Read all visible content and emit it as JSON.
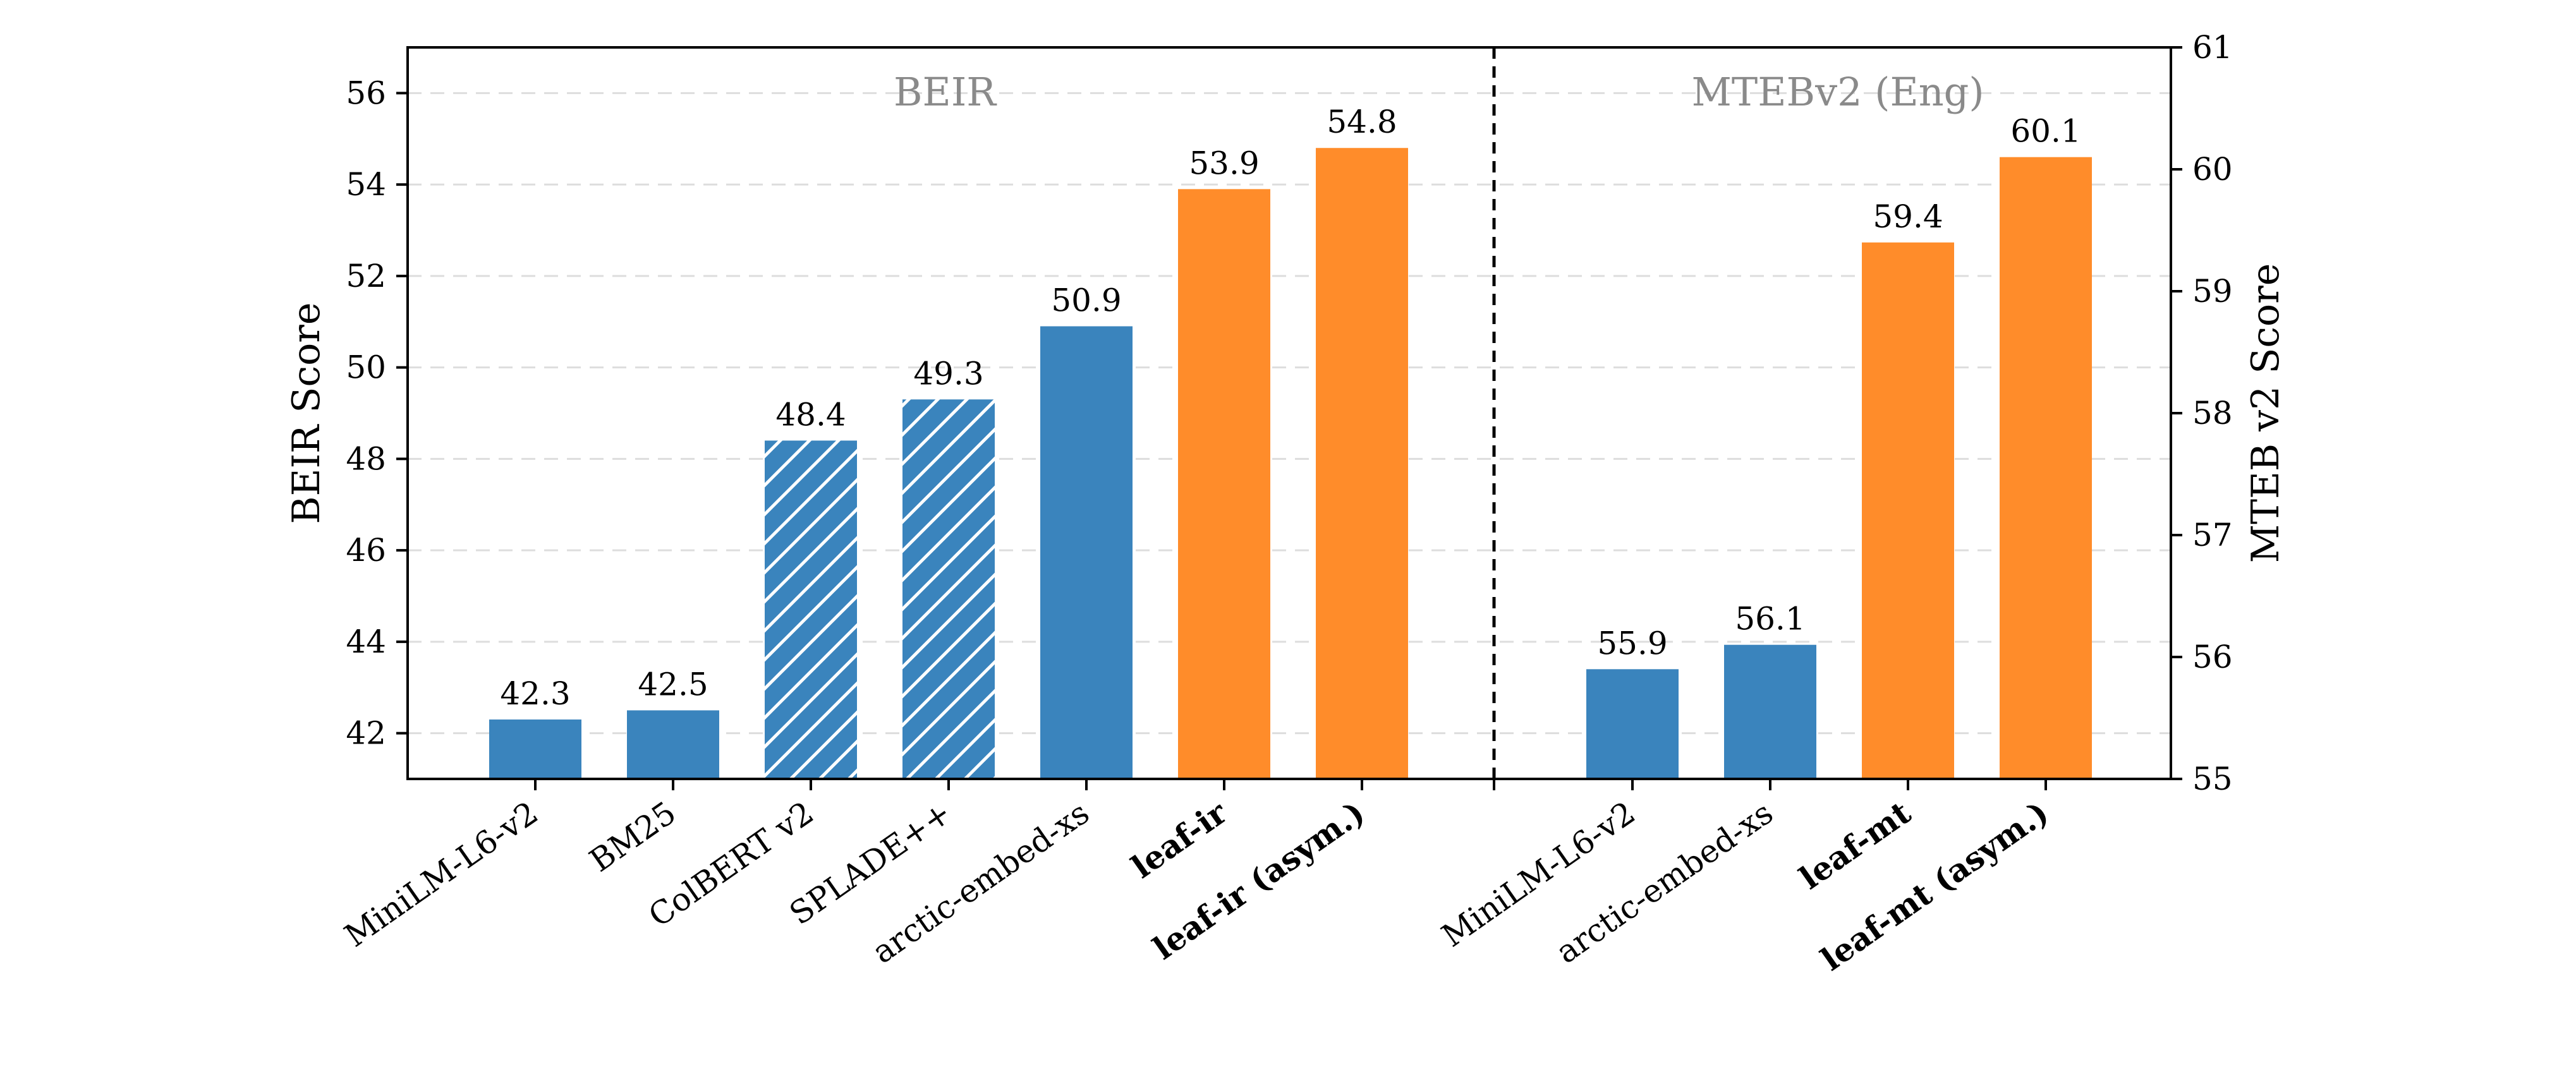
{
  "chart_data": {
    "type": "bar",
    "y_left": {
      "label": "BEIR Score",
      "ylim": [
        41,
        57
      ],
      "ticks": [
        42,
        44,
        46,
        48,
        50,
        52,
        54,
        56
      ]
    },
    "y_right": {
      "label": "MTEB v2 Score",
      "ylim": [
        55,
        61
      ],
      "ticks": [
        55,
        56,
        57,
        58,
        59,
        60,
        61
      ]
    },
    "grid": true,
    "panels": [
      {
        "title": "BEIR",
        "axis": "left",
        "categories": [
          "MiniLM-L6-v2",
          "BM25",
          "ColBERT v2",
          "SPLADE++",
          "arctic-embed-xs",
          "leaf-ir",
          "leaf-ir (asym.)"
        ],
        "values": [
          42.3,
          42.5,
          48.4,
          49.3,
          50.9,
          53.9,
          54.8
        ],
        "value_labels": [
          "42.3",
          "42.5",
          "48.4",
          "49.3",
          "50.9",
          "53.9",
          "54.8"
        ],
        "colors": [
          "#3a84bd",
          "#3a84bd",
          "#3a84bd",
          "#3a84bd",
          "#3a84bd",
          "#ff8c2a",
          "#ff8c2a"
        ],
        "hatched": [
          false,
          false,
          true,
          true,
          false,
          false,
          false
        ],
        "bold": [
          false,
          false,
          false,
          false,
          false,
          true,
          true
        ]
      },
      {
        "title": "MTEBv2 (Eng)",
        "axis": "right",
        "categories": [
          "MiniLM-L6-v2",
          "arctic-embed-xs",
          "leaf-mt",
          "leaf-mt (asym.)"
        ],
        "values": [
          55.9,
          56.1,
          59.4,
          60.1
        ],
        "value_labels": [
          "55.9",
          "56.1",
          "59.4",
          "60.1"
        ],
        "colors": [
          "#3a84bd",
          "#3a84bd",
          "#ff8c2a",
          "#ff8c2a"
        ],
        "hatched": [
          false,
          false,
          false,
          false
        ],
        "bold": [
          false,
          false,
          true,
          true
        ]
      }
    ]
  }
}
